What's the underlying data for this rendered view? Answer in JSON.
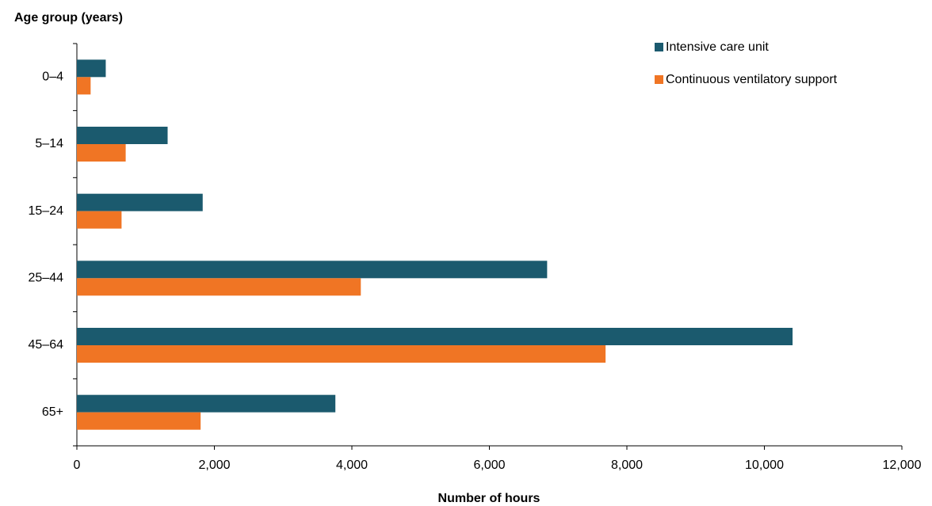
{
  "chart_data": {
    "type": "bar",
    "orientation": "horizontal",
    "y_title": "Age group (years)",
    "x_title": "Number of hours",
    "categories": [
      "0–4",
      "5–14",
      "15–24",
      "25–44",
      "45–64",
      "65+"
    ],
    "series": [
      {
        "name": "Intensive care unit",
        "color": "#1b5a6e",
        "values": [
          420,
          1320,
          1830,
          6840,
          10410,
          3760
        ]
      },
      {
        "name": "Continuous ventilatory support",
        "color": "#f07524",
        "values": [
          200,
          710,
          650,
          4130,
          7690,
          1800
        ]
      }
    ],
    "xlim": [
      0,
      12000
    ],
    "xticks": [
      0,
      {
        "value": 2000,
        "label": "2,000"
      },
      {
        "value": 4000,
        "label": "4,000"
      },
      {
        "value": 6000,
        "label": "6,000"
      },
      {
        "value": 8000,
        "label": "8,000"
      },
      {
        "value": 10000,
        "label": "10,000"
      },
      {
        "value": 12000,
        "label": "12,000"
      }
    ],
    "legend": "top-right",
    "grid": false
  }
}
